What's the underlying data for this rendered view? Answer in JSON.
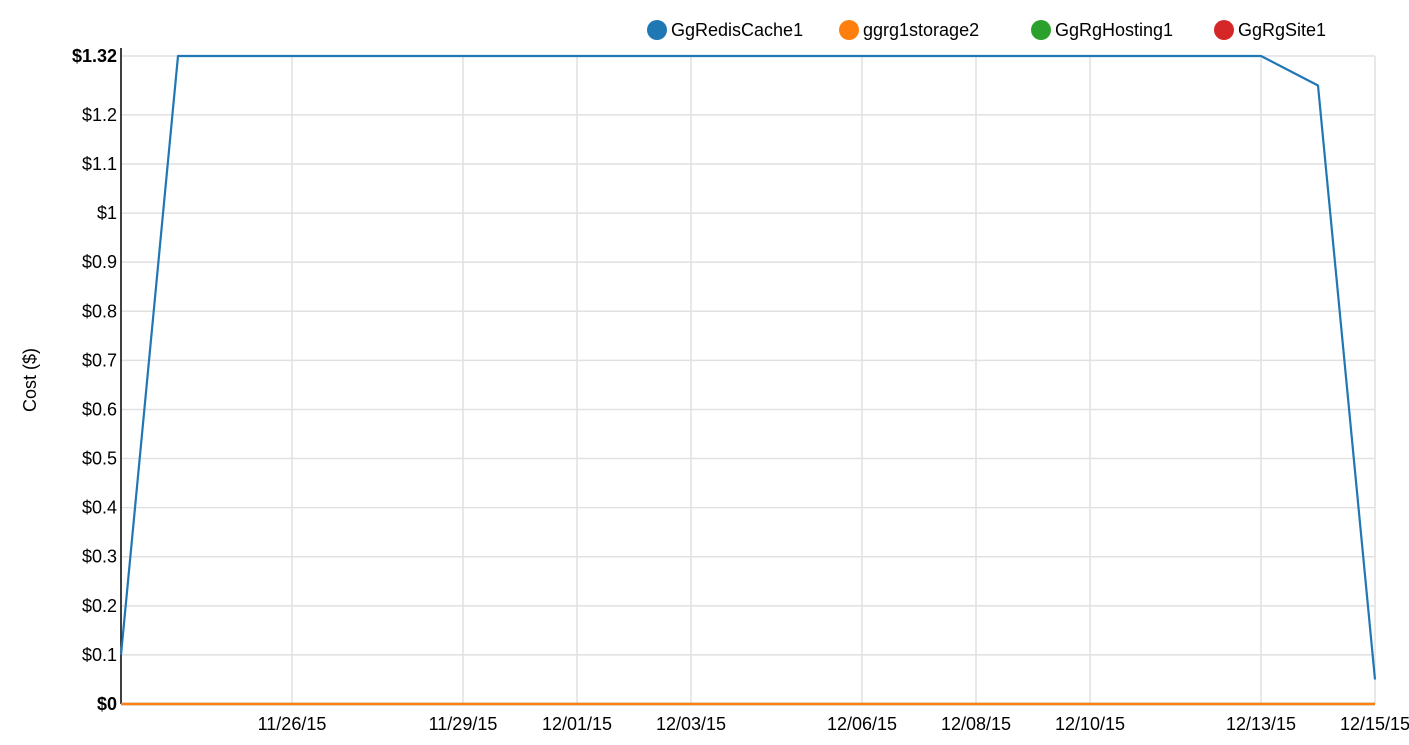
{
  "chart_data": {
    "type": "line",
    "title": "",
    "xlabel": "",
    "ylabel": "Cost ($)",
    "ylim": [
      0,
      1.32
    ],
    "xlim": [
      "11/23/15",
      "12/15/15"
    ],
    "x_ticks": [
      "11/26/15",
      "11/29/15",
      "12/01/15",
      "12/03/15",
      "12/06/15",
      "12/08/15",
      "12/10/15",
      "12/13/15",
      "12/15/15"
    ],
    "y_ticks": [
      {
        "value": 0,
        "label": "$0",
        "bold": true
      },
      {
        "value": 0.1,
        "label": "$0.1"
      },
      {
        "value": 0.2,
        "label": "$0.2"
      },
      {
        "value": 0.3,
        "label": "$0.3"
      },
      {
        "value": 0.4,
        "label": "$0.4"
      },
      {
        "value": 0.5,
        "label": "$0.5"
      },
      {
        "value": 0.6,
        "label": "$0.6"
      },
      {
        "value": 0.7,
        "label": "$0.7"
      },
      {
        "value": 0.8,
        "label": "$0.8"
      },
      {
        "value": 0.9,
        "label": "$0.9"
      },
      {
        "value": 1.0,
        "label": "$1"
      },
      {
        "value": 1.1,
        "label": "$1.1"
      },
      {
        "value": 1.2,
        "label": "$1.2"
      },
      {
        "value": 1.32,
        "label": "$1.32",
        "bold": true
      }
    ],
    "grid": true,
    "legend_position": "top-right",
    "series": [
      {
        "name": "GgRedisCache1",
        "color": "#1f77b4",
        "points": [
          {
            "x": "11/23/15",
            "y": 0.1
          },
          {
            "x": "11/24/15",
            "y": 1.32
          },
          {
            "x": "12/13/15",
            "y": 1.32
          },
          {
            "x": "12/14/15",
            "y": 1.26
          },
          {
            "x": "12/15/15",
            "y": 0.05
          }
        ]
      },
      {
        "name": "ggrg1storage2",
        "color": "#ff7f0e",
        "points": [
          {
            "x": "11/23/15",
            "y": 0
          },
          {
            "x": "12/15/15",
            "y": 0
          }
        ]
      },
      {
        "name": "GgRgHosting1",
        "color": "#2ca02c",
        "points": [
          {
            "x": "11/23/15",
            "y": 0
          },
          {
            "x": "12/15/15",
            "y": 0
          }
        ]
      },
      {
        "name": "GgRgSite1",
        "color": "#d62728",
        "points": [
          {
            "x": "11/23/15",
            "y": 0
          },
          {
            "x": "12/15/15",
            "y": 0
          }
        ]
      }
    ]
  }
}
